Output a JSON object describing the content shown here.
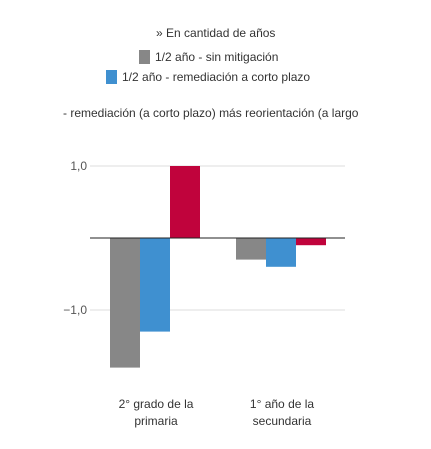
{
  "chart_data": {
    "type": "bar",
    "legend_unit": "» En cantidad de años",
    "legend_note": "- remediación (a corto plazo) más reorientación (a largo",
    "categories": [
      {
        "line1": "2° grado de la",
        "line2": "primaria"
      },
      {
        "line1": "1° año de la",
        "line2": "secundaria"
      }
    ],
    "series": [
      {
        "name": "1/2 año - sin mitigación",
        "color": "#878787",
        "values": [
          -1.8,
          -0.3
        ]
      },
      {
        "name": "1/2 año - remediación a corto plazo",
        "color": "#3f90d0",
        "values": [
          -1.3,
          -0.4
        ]
      },
      {
        "name": "",
        "color": "#c0033c",
        "values": [
          1.0,
          -0.1
        ]
      }
    ],
    "y_ticks": [
      {
        "value": 1.0,
        "label": "1,0"
      },
      {
        "value": -1.0,
        "label": "−1,0"
      }
    ],
    "ylim": [
      -1.8,
      1.0
    ],
    "grid": true
  }
}
